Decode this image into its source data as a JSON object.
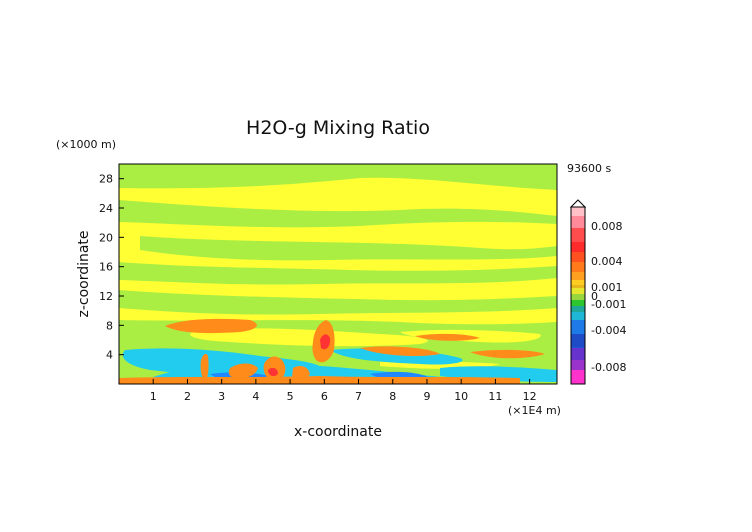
{
  "chart_data": {
    "type": "heatmap",
    "title": "H2O-g Mixing Ratio",
    "time_label": "93600 s",
    "xlabel": "x-coordinate",
    "ylabel": "z-coordinate",
    "x_unit": "(×1E4 m)",
    "y_unit": "(×1000 m)",
    "xlim": [
      0,
      12.8
    ],
    "ylim": [
      0,
      30
    ],
    "x_ticks": [
      "1",
      "2",
      "3",
      "4",
      "5",
      "6",
      "7",
      "8",
      "9",
      "10",
      "11",
      "12"
    ],
    "y_ticks": [
      "4",
      "8",
      "12",
      "16",
      "20",
      "24",
      "28"
    ],
    "colorbar_labels": [
      "0.008",
      "0.004",
      "0.001",
      "0",
      "-0.001",
      "-0.004",
      "-0.008"
    ],
    "colors": {
      "background": "#ffff33",
      "light_green": "#aaee44",
      "orange": "#ff8c1a",
      "cyan": "#22ccee",
      "blue": "#2288ff",
      "red": "#ff3333"
    }
  }
}
